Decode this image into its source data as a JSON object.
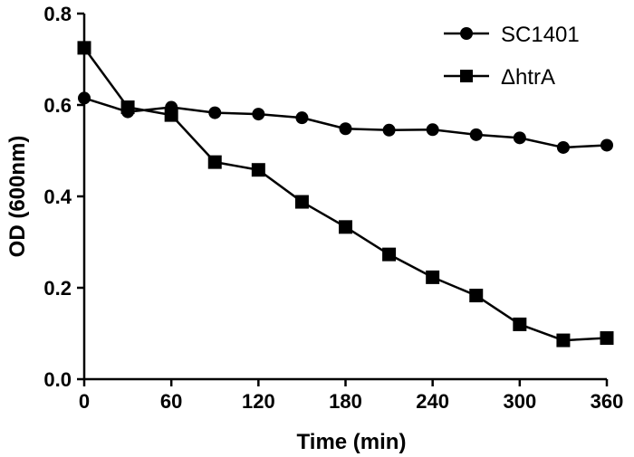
{
  "chart_data": {
    "type": "line",
    "title": "",
    "xlabel": "Time (min)",
    "ylabel": "OD (600nm)",
    "xlim": [
      0,
      360
    ],
    "ylim": [
      0,
      0.8
    ],
    "xticks": [
      "0",
      "60",
      "120",
      "180",
      "240",
      "300",
      "360"
    ],
    "yticks": [
      "0.0",
      "0.2",
      "0.4",
      "0.6",
      "0.8"
    ],
    "grid": false,
    "legend_position": "top-right",
    "x": [
      0,
      30,
      60,
      90,
      120,
      150,
      180,
      210,
      240,
      270,
      300,
      330,
      360
    ],
    "series": [
      {
        "name": "SC1401",
        "marker": "circle",
        "values": [
          0.615,
          0.585,
          0.595,
          0.583,
          0.58,
          0.572,
          0.548,
          0.545,
          0.546,
          0.535,
          0.528,
          0.507,
          0.512
        ]
      },
      {
        "name": "ΔhtrA",
        "marker": "square",
        "values": [
          0.725,
          0.595,
          0.578,
          0.475,
          0.458,
          0.388,
          0.333,
          0.273,
          0.223,
          0.183,
          0.12,
          0.085,
          0.09
        ]
      }
    ]
  }
}
